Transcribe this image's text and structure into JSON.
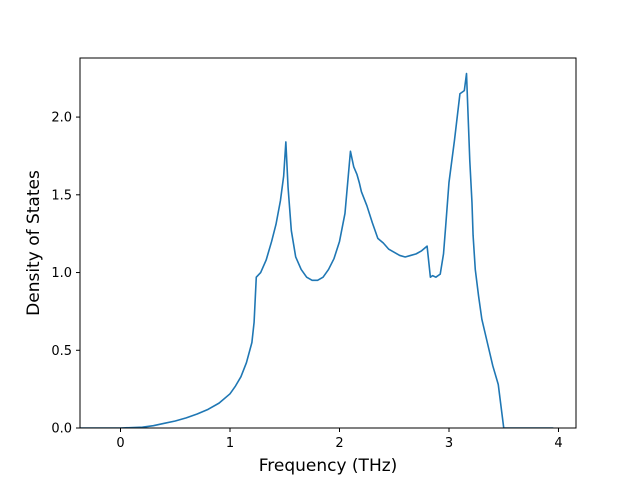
{
  "chart_data": {
    "type": "line",
    "xlabel": "Frequency (THz)",
    "ylabel": "Density of States",
    "xlim": [
      -0.37,
      4.16
    ],
    "ylim": [
      0.0,
      2.38
    ],
    "xticks": [
      0,
      1,
      2,
      3,
      4
    ],
    "yticks": [
      0.0,
      0.5,
      1.0,
      1.5,
      2.0
    ],
    "xtick_labels": [
      "0",
      "1",
      "2",
      "3",
      "4"
    ],
    "ytick_labels": [
      "0.0",
      "0.5",
      "1.0",
      "1.5",
      "2.0"
    ],
    "grid": false,
    "legend": "none",
    "series": [
      {
        "color": "#1f77b4",
        "x": [
          -0.37,
          -0.2,
          0.0,
          0.2,
          0.3,
          0.4,
          0.5,
          0.6,
          0.7,
          0.8,
          0.9,
          1.0,
          1.05,
          1.1,
          1.15,
          1.2,
          1.22,
          1.24,
          1.28,
          1.33,
          1.38,
          1.42,
          1.46,
          1.49,
          1.51,
          1.53,
          1.56,
          1.6,
          1.65,
          1.7,
          1.75,
          1.8,
          1.85,
          1.9,
          1.95,
          2.0,
          2.05,
          2.1,
          2.13,
          2.16,
          2.18,
          2.2,
          2.25,
          2.3,
          2.35,
          2.4,
          2.45,
          2.5,
          2.55,
          2.6,
          2.65,
          2.7,
          2.75,
          2.8,
          2.83,
          2.85,
          2.88,
          2.92,
          2.95,
          2.97,
          3.0,
          3.05,
          3.1,
          3.14,
          3.16,
          3.19,
          3.21,
          3.22,
          3.24,
          3.27,
          3.3,
          3.35,
          3.4,
          3.45,
          3.5,
          3.55,
          3.57,
          3.6,
          3.7,
          3.8,
          3.95
        ],
        "values": [
          0.0,
          0.0,
          0.0,
          0.005,
          0.015,
          0.03,
          0.045,
          0.065,
          0.09,
          0.12,
          0.16,
          0.22,
          0.27,
          0.33,
          0.42,
          0.55,
          0.68,
          0.97,
          1.0,
          1.08,
          1.2,
          1.31,
          1.46,
          1.62,
          1.84,
          1.55,
          1.27,
          1.1,
          1.02,
          0.97,
          0.95,
          0.95,
          0.97,
          1.02,
          1.09,
          1.2,
          1.38,
          1.78,
          1.68,
          1.63,
          1.58,
          1.52,
          1.43,
          1.32,
          1.22,
          1.19,
          1.15,
          1.13,
          1.11,
          1.1,
          1.11,
          1.12,
          1.14,
          1.17,
          0.97,
          0.98,
          0.97,
          0.99,
          1.12,
          1.3,
          1.58,
          1.85,
          2.15,
          2.17,
          2.28,
          1.72,
          1.45,
          1.24,
          1.02,
          0.85,
          0.7,
          0.55,
          0.4,
          0.28,
          0.0,
          0.0,
          0.0,
          0.0,
          0.0,
          0.0,
          0.0
        ]
      }
    ]
  }
}
